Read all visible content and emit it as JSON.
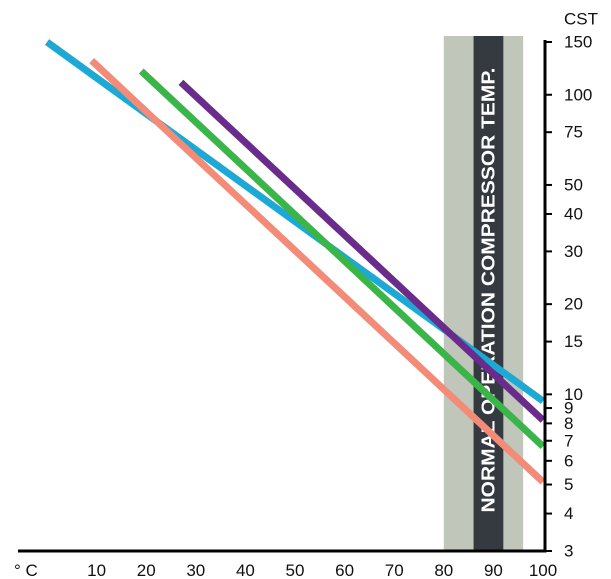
{
  "chart_data": {
    "type": "line",
    "x": {
      "unit": "° C",
      "ticks": [
        10,
        20,
        30,
        40,
        50,
        60,
        70,
        80,
        90,
        100
      ],
      "range": [
        0,
        100
      ]
    },
    "y": {
      "unit": "CST",
      "scale": "log",
      "ticks": [
        150,
        100,
        75,
        50,
        40,
        30,
        20,
        15,
        10,
        9,
        8,
        7,
        6,
        5,
        4,
        3
      ],
      "range": [
        3,
        150
      ]
    },
    "series": [
      {
        "color": "#1ea8d4",
        "points": [
          [
            0,
            150
          ],
          [
            100,
            9.5
          ]
        ]
      },
      {
        "color": "#f28c78",
        "points": [
          [
            9,
            130
          ],
          [
            100,
            5.1
          ]
        ]
      },
      {
        "color": "#3bb54a",
        "points": [
          [
            19,
            120
          ],
          [
            100,
            6.7
          ]
        ]
      },
      {
        "color": "#6a2c8a",
        "points": [
          [
            27,
            110
          ],
          [
            100,
            8.2
          ]
        ]
      }
    ],
    "band": {
      "label": "NORMAL OPERATION COMPRESSOR TEMP.",
      "outer_range": [
        80,
        96
      ],
      "inner_range": [
        86,
        92
      ],
      "outer_color": "#c0c6ba",
      "inner_color": "#343a40"
    },
    "grid": false,
    "legend": "none"
  }
}
